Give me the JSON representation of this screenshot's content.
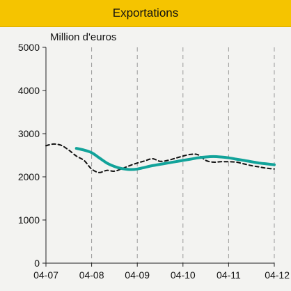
{
  "header": {
    "title": "Exportations"
  },
  "colors": {
    "header_bg": "#f5c400",
    "series_solid": "#12a39a",
    "series_dashed": "#111111",
    "grid": "#9a9a9a"
  },
  "chart_data": {
    "type": "line",
    "title": "Exportations",
    "ylabel": "Million d'euros",
    "xlabel": "",
    "ylim": [
      0,
      5000
    ],
    "y_ticks": [
      "0",
      "1000",
      "2000",
      "3000",
      "4000",
      "5000"
    ],
    "x_ticks": [
      "04-07",
      "04-08",
      "04-09",
      "04-10",
      "04-11",
      "04-12"
    ],
    "grid": "vertical dashed",
    "series": [
      {
        "style": "dashed",
        "x": [
          "2007-04",
          "2007-06",
          "2007-08",
          "2007-10",
          "2007-12",
          "2008-02",
          "2008-04",
          "2008-06",
          "2008-08",
          "2008-10",
          "2008-12",
          "2009-02",
          "2009-04",
          "2009-06",
          "2009-08",
          "2009-10",
          "2009-12",
          "2010-02",
          "2010-04",
          "2010-06",
          "2010-08",
          "2010-10",
          "2010-12",
          "2011-02",
          "2011-04",
          "2011-06",
          "2011-08",
          "2011-10",
          "2011-12",
          "2012-02",
          "2012-04"
        ],
        "values": [
          2720,
          2760,
          2730,
          2620,
          2480,
          2380,
          2180,
          2100,
          2150,
          2130,
          2190,
          2260,
          2320,
          2370,
          2420,
          2360,
          2380,
          2430,
          2480,
          2520,
          2510,
          2380,
          2340,
          2350,
          2350,
          2340,
          2300,
          2260,
          2230,
          2200,
          2180
        ]
      },
      {
        "style": "solid",
        "x": [
          "2007-12",
          "2008-02",
          "2008-04",
          "2008-06",
          "2008-08",
          "2008-10",
          "2008-12",
          "2009-02",
          "2009-04",
          "2009-06",
          "2009-08",
          "2009-10",
          "2009-12",
          "2010-02",
          "2010-04",
          "2010-06",
          "2010-08",
          "2010-10",
          "2010-12",
          "2011-02",
          "2011-04",
          "2011-06",
          "2011-08",
          "2011-10",
          "2011-12",
          "2012-02",
          "2012-04"
        ],
        "values": [
          2660,
          2620,
          2560,
          2440,
          2320,
          2240,
          2190,
          2170,
          2180,
          2220,
          2260,
          2290,
          2320,
          2350,
          2380,
          2410,
          2440,
          2460,
          2470,
          2460,
          2440,
          2410,
          2380,
          2350,
          2320,
          2300,
          2280
        ]
      }
    ]
  }
}
